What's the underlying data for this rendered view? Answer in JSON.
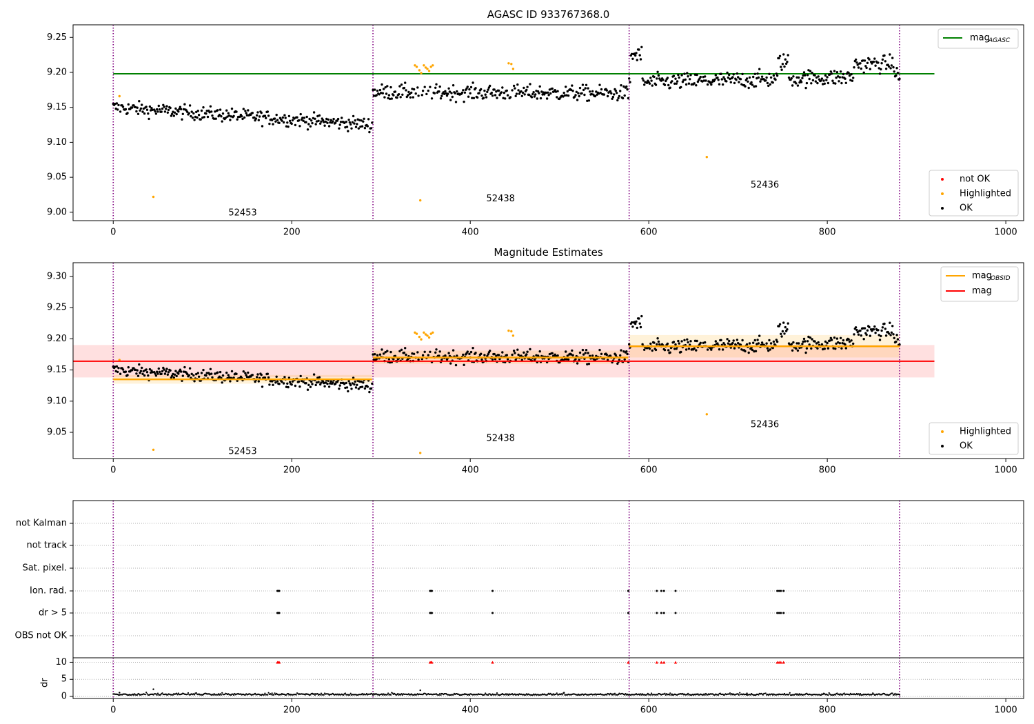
{
  "chart_data": [
    {
      "type": "scatter",
      "title": "AGASC ID 933767368.0",
      "xlim": [
        -45,
        1020
      ],
      "ylim": [
        8.988,
        9.268
      ],
      "xticks": [
        0,
        200,
        400,
        600,
        800,
        1000
      ],
      "yticks": [
        9.0,
        9.05,
        9.1,
        9.15,
        9.2,
        9.25
      ],
      "ytick_labels": [
        "9.00",
        "9.05",
        "9.10",
        "9.15",
        "9.20",
        "9.25"
      ],
      "vlines": [
        0,
        291,
        578,
        881
      ],
      "obsid_labels": [
        {
          "text": "52453",
          "x": 145,
          "y": 8.999
        },
        {
          "text": "52438",
          "x": 434,
          "y": 9.019
        },
        {
          "text": "52436",
          "x": 730,
          "y": 9.039
        }
      ],
      "hlines": [
        {
          "name": "mag_AGASC",
          "y": 9.198,
          "x0": 0,
          "x1": 920,
          "color": "#008000"
        }
      ],
      "legend_top": {
        "placement": "top-right",
        "entries": [
          {
            "label": "mag",
            "sub": "AGASC",
            "color": "#008000"
          }
        ]
      },
      "legend_bottom": {
        "placement": "lower-right",
        "entries": [
          {
            "label": "not OK",
            "color": "#ff0000"
          },
          {
            "label": "Highlighted",
            "color": "#ffa500"
          },
          {
            "label": "OK",
            "color": "#000000"
          }
        ]
      },
      "segments": [
        {
          "x0": 0,
          "x1": 290,
          "start": 9.15,
          "end": 9.125,
          "noise": 0.01
        },
        {
          "x0": 291,
          "x1": 577,
          "start": 9.172,
          "end": 9.17,
          "noise": 0.011
        },
        {
          "x0": 578,
          "x1": 881,
          "start": 9.185,
          "end": 9.195,
          "noise": 0.012
        }
      ],
      "bumps": [
        {
          "x0": 580,
          "x1": 592,
          "level": 9.225
        },
        {
          "x0": 745,
          "x1": 756,
          "level": 9.215
        },
        {
          "x0": 830,
          "x1": 875,
          "level": 9.212
        }
      ],
      "highlighted": [
        [
          7,
          9.166
        ],
        [
          45,
          9.022
        ],
        [
          338,
          9.21
        ],
        [
          340,
          9.208
        ],
        [
          343,
          9.203
        ],
        [
          345,
          9.199
        ],
        [
          348,
          9.21
        ],
        [
          350,
          9.207
        ],
        [
          352,
          9.205
        ],
        [
          354,
          9.202
        ],
        [
          356,
          9.208
        ],
        [
          358,
          9.21
        ],
        [
          344,
          9.017
        ],
        [
          443,
          9.213
        ],
        [
          446,
          9.212
        ],
        [
          448,
          9.205
        ],
        [
          665,
          9.079
        ]
      ]
    },
    {
      "type": "scatter",
      "title": "Magnitude Estimates",
      "xlim": [
        -45,
        1020
      ],
      "ylim": [
        9.008,
        9.322
      ],
      "xticks": [
        0,
        200,
        400,
        600,
        800,
        1000
      ],
      "yticks": [
        9.05,
        9.1,
        9.15,
        9.2,
        9.25,
        9.3
      ],
      "ytick_labels": [
        "9.05",
        "9.10",
        "9.15",
        "9.20",
        "9.25",
        "9.30"
      ],
      "vlines": [
        0,
        291,
        578,
        881
      ],
      "obsid_labels": [
        {
          "text": "52453",
          "x": 145,
          "y": 9.019
        },
        {
          "text": "52438",
          "x": 434,
          "y": 9.04
        },
        {
          "text": "52436",
          "x": 730,
          "y": 9.062
        }
      ],
      "mag": {
        "y": 9.164,
        "lo": 9.138,
        "hi": 9.19,
        "x0": -45,
        "x1": 920,
        "color": "#ff0000"
      },
      "obsid_mags": [
        {
          "x0": 0,
          "x1": 290,
          "y": 9.135,
          "lo": 9.128,
          "hi": 9.142
        },
        {
          "x0": 291,
          "x1": 577,
          "y": 9.17,
          "lo": 9.16,
          "hi": 9.181
        },
        {
          "x0": 578,
          "x1": 881,
          "y": 9.188,
          "lo": 9.17,
          "hi": 9.206
        }
      ],
      "legend_top": {
        "placement": "top-right",
        "entries": [
          {
            "label": "mag",
            "sub": "OBSID",
            "color": "#ffa500"
          },
          {
            "label": "mag",
            "color": "#ff0000"
          }
        ]
      },
      "legend_bottom": {
        "placement": "lower-right",
        "entries": [
          {
            "label": "Highlighted",
            "color": "#ffa500"
          },
          {
            "label": "OK",
            "color": "#000000"
          }
        ]
      },
      "highlighted": [
        [
          7,
          9.166
        ],
        [
          45,
          9.022
        ],
        [
          338,
          9.21
        ],
        [
          340,
          9.208
        ],
        [
          343,
          9.203
        ],
        [
          345,
          9.199
        ],
        [
          348,
          9.21
        ],
        [
          350,
          9.207
        ],
        [
          352,
          9.205
        ],
        [
          354,
          9.202
        ],
        [
          356,
          9.208
        ],
        [
          358,
          9.21
        ],
        [
          344,
          9.017
        ],
        [
          443,
          9.213
        ],
        [
          446,
          9.212
        ],
        [
          448,
          9.205
        ],
        [
          665,
          9.079
        ]
      ]
    },
    {
      "type": "scatter",
      "title": "",
      "xlim": [
        -45,
        1020
      ],
      "categories": [
        "not Kalman",
        "not track",
        "Sat. pixel.",
        "Ion. rad.",
        "dr > 5",
        "OBS not OK"
      ],
      "vlines": [
        0,
        291,
        578,
        881
      ],
      "flag_x": [
        184,
        185,
        186,
        355,
        356,
        357,
        425,
        577,
        609,
        614,
        617,
        630,
        744,
        746,
        748,
        751
      ],
      "flagged_rows": [
        "Ion. rad.",
        "dr > 5"
      ]
    },
    {
      "type": "scatter",
      "title": "",
      "ylabel": "dr",
      "xlim": [
        -45,
        1020
      ],
      "ylim": [
        -0.6,
        11.3
      ],
      "xticks": [
        0,
        200,
        400,
        600,
        800,
        1000
      ],
      "yticks": [
        0,
        5,
        10
      ],
      "ytick_labels": [
        "0",
        "5",
        "10"
      ],
      "vlines": [
        0,
        291,
        578,
        881
      ],
      "dr_threshold": 10,
      "flag_x": [
        184,
        185,
        186,
        355,
        356,
        357,
        425,
        577,
        609,
        614,
        617,
        630,
        744,
        746,
        748,
        751
      ],
      "dr_baseline": 0.4,
      "dr_outliers": [
        [
          45,
          2.1
        ],
        [
          344,
          1.8
        ],
        [
          7,
          1.1
        ],
        [
          505,
          1.1
        ],
        [
          710,
          0.9
        ]
      ]
    }
  ]
}
